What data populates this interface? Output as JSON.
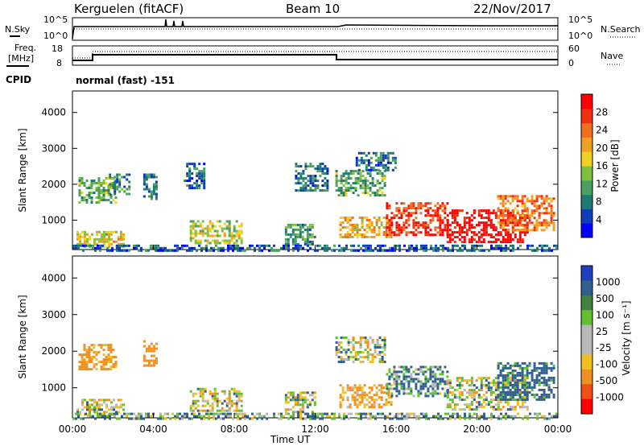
{
  "header": {
    "station": "Kerguelen (fitACF)",
    "beam": "Beam 10",
    "date": "22/Nov/2017"
  },
  "noise_panel": {
    "left_label": "N.Sky",
    "right_label": "N.Search",
    "left_ticks": [
      "10^5",
      "10^0"
    ],
    "right_ticks": [
      "10^5",
      "10^0"
    ]
  },
  "freq_panel": {
    "left_label_line1": "Freq.",
    "left_label_line2": "[MHz]",
    "right_label": "Nave",
    "left_ticks": [
      "18",
      "8"
    ],
    "right_ticks": [
      "60",
      "0"
    ]
  },
  "cpid": {
    "label": "CPID",
    "value": "normal (fast) -151"
  },
  "colors": {
    "power": [
      "#0000ff",
      "#0f3db8",
      "#1f7a70",
      "#4aa060",
      "#80c040",
      "#f0d020",
      "#f0a020",
      "#f07020",
      "#f03010",
      "#ff0000"
    ],
    "velocity_pos": [
      "#2040c0",
      "#306090",
      "#408040",
      "#60c030"
    ],
    "velocity_neutral": "#b8b8b8",
    "velocity_neg": [
      "#f0c020",
      "#f09020",
      "#f05010",
      "#ff0000"
    ]
  },
  "chart_data": [
    {
      "type": "heatmap",
      "title": "Power",
      "xlabel": "Time UT",
      "ylabel": "Slant Range [km]",
      "xlim": [
        "00:00",
        "24:00"
      ],
      "ylim": [
        180,
        4600
      ],
      "x_ticks": [
        "00:00",
        "04:00",
        "08:00",
        "12:00",
        "16:00",
        "20:00",
        "00:00"
      ],
      "y_ticks": [
        1000,
        2000,
        3000,
        4000
      ],
      "colorbar": {
        "label": "Power [dB]",
        "ticks": [
          "4",
          "8",
          "12",
          "16",
          "20",
          "24",
          "28"
        ]
      },
      "regions": [
        {
          "t0": 0.2,
          "t1": 2.5,
          "r0": 250,
          "r1": 700,
          "power": 16
        },
        {
          "t0": 0.3,
          "t1": 2.2,
          "r0": 1500,
          "r1": 2200,
          "power": 12
        },
        {
          "t0": 1.8,
          "t1": 2.8,
          "r0": 1700,
          "r1": 2300,
          "power": 8
        },
        {
          "t0": 3.5,
          "t1": 4.2,
          "r0": 1600,
          "r1": 2300,
          "power": 6
        },
        {
          "t0": 5.8,
          "t1": 8.4,
          "r0": 350,
          "r1": 1000,
          "power": 14
        },
        {
          "t0": 5.5,
          "t1": 6.5,
          "r0": 1900,
          "r1": 2600,
          "power": 6
        },
        {
          "t0": 10.5,
          "t1": 12.0,
          "r0": 350,
          "r1": 900,
          "power": 9
        },
        {
          "t0": 11.0,
          "t1": 12.6,
          "r0": 1800,
          "r1": 2600,
          "power": 6
        },
        {
          "t0": 13.0,
          "t1": 15.5,
          "r0": 1700,
          "r1": 2400,
          "power": 10
        },
        {
          "t0": 13.2,
          "t1": 15.8,
          "r0": 500,
          "r1": 1100,
          "power": 18
        },
        {
          "t0": 14.0,
          "t1": 16.0,
          "r0": 2400,
          "r1": 2900,
          "power": 6
        },
        {
          "t0": 15.5,
          "t1": 18.5,
          "r0": 600,
          "r1": 1500,
          "power": 26
        },
        {
          "t0": 18.5,
          "t1": 22.5,
          "r0": 400,
          "r1": 1300,
          "power": 30
        },
        {
          "t0": 21.0,
          "t1": 23.8,
          "r0": 700,
          "r1": 1700,
          "power": 22
        },
        {
          "t0": 0.0,
          "t1": 24.0,
          "r0": 180,
          "r1": 320,
          "power": 5
        }
      ]
    },
    {
      "type": "heatmap",
      "title": "Velocity",
      "xlabel": "Time UT",
      "ylabel": "Slant Range [km]",
      "xlim": [
        "00:00",
        "24:00"
      ],
      "ylim": [
        180,
        4600
      ],
      "x_ticks": [
        "00:00",
        "04:00",
        "08:00",
        "12:00",
        "16:00",
        "20:00",
        "00:00"
      ],
      "y_ticks": [
        1000,
        2000,
        3000,
        4000
      ],
      "colorbar": {
        "label": "Velocity [m s⁻¹]",
        "ticks": [
          "1000",
          "500",
          "100",
          "25",
          "-25",
          "-100",
          "-500",
          "-1000"
        ]
      },
      "regions": [
        {
          "t0": 0.2,
          "t1": 2.5,
          "r0": 250,
          "r1": 700,
          "velocity": 0
        },
        {
          "t0": 0.3,
          "t1": 2.2,
          "r0": 1500,
          "r1": 2200,
          "velocity": -200
        },
        {
          "t0": 3.5,
          "t1": 4.2,
          "r0": 1600,
          "r1": 2300,
          "velocity": -300
        },
        {
          "t0": 5.8,
          "t1": 8.4,
          "r0": 350,
          "r1": 1000,
          "velocity": 0
        },
        {
          "t0": 10.5,
          "t1": 12.0,
          "r0": 350,
          "r1": 900,
          "velocity": 0
        },
        {
          "t0": 13.0,
          "t1": 15.5,
          "r0": 1700,
          "r1": 2400,
          "velocity": 0
        },
        {
          "t0": 13.2,
          "t1": 15.8,
          "r0": 500,
          "r1": 1100,
          "velocity": -150
        },
        {
          "t0": 15.5,
          "t1": 18.5,
          "r0": 800,
          "r1": 1600,
          "velocity": 120
        },
        {
          "t0": 18.5,
          "t1": 22.5,
          "r0": 400,
          "r1": 1300,
          "velocity": 0
        },
        {
          "t0": 21.0,
          "t1": 23.8,
          "r0": 700,
          "r1": 1700,
          "velocity": 200
        },
        {
          "t0": 0.0,
          "t1": 24.0,
          "r0": 180,
          "r1": 320,
          "velocity": 80
        }
      ]
    }
  ]
}
